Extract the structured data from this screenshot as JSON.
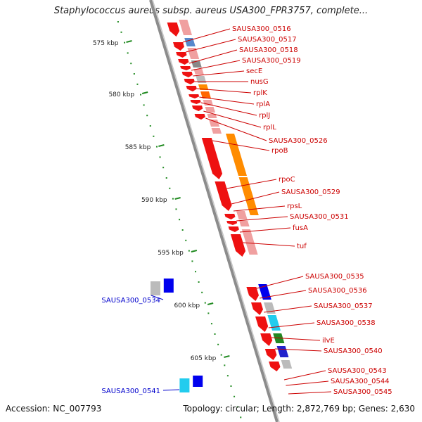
{
  "title": "Staphylococcus aureus subsp. aureus USA300_FPR3757, complete...",
  "footer": {
    "accession": "Accession: NC_007793",
    "topology": "Topology: circular; Length: 2,872,769 bp; Genes: 2,630"
  },
  "ruler_labels": [
    "575 kbp",
    "580 kbp",
    "585 kbp",
    "590 kbp",
    "595 kbp",
    "600 kbp",
    "605 kbp"
  ],
  "gene_labels_right": [
    "SAUSA300_0516",
    "SAUSA300_0517",
    "SAUSA300_0518",
    "SAUSA300_0519",
    "secE",
    "nusG",
    "rplK",
    "rplA",
    "rplJ",
    "rplL",
    "SAUSA300_0526",
    "rpoB",
    "rpoC",
    "SAUSA300_0529",
    "rpsL",
    "SAUSA300_0531",
    "fusA",
    "tuf",
    "SAUSA300_0535",
    "SAUSA300_0536",
    "SAUSA300_0537",
    "SAUSA300_0538",
    "ilvE",
    "SAUSA300_0540",
    "SAUSA300_0543",
    "SAUSA300_0544",
    "SAUSA300_0545"
  ],
  "gene_labels_left": [
    "SAUSA300_0534",
    "SAUSA300_0541"
  ],
  "colors": {
    "forward_cds": "#ee1111",
    "reverse_cds": "#0000ee",
    "label_forward": "#cc0000",
    "label_reverse": "#0000cc",
    "backbone": "#8c8c8c",
    "ruler": "#228b22",
    "orange_feature": "#ff8c00",
    "pink_feature": "#f0a0a0",
    "gray_feature": "#bbbbbb",
    "cyan_feature": "#22ccee"
  }
}
